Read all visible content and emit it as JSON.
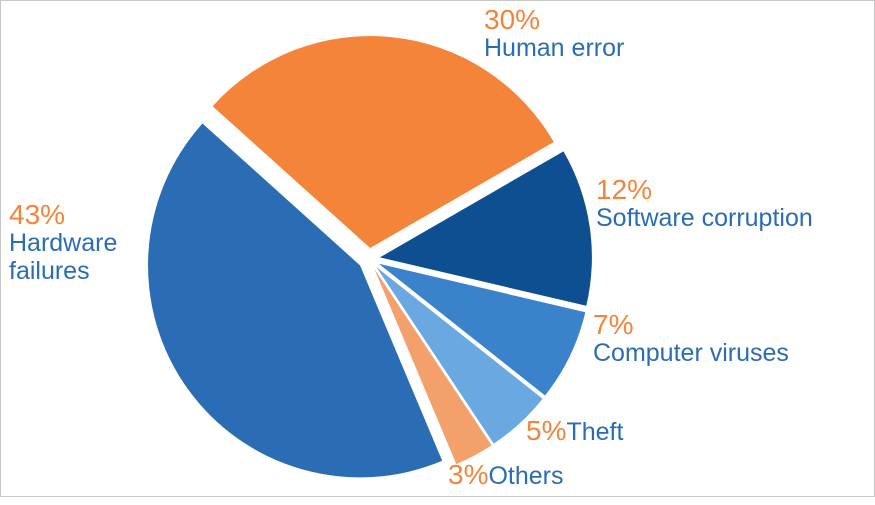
{
  "chart_data": {
    "type": "pie",
    "categories": [
      "Human error",
      "Software corruption",
      "Computer viruses",
      "Theft",
      "Others",
      "Hardware failures"
    ],
    "values": [
      30,
      12,
      7,
      5,
      3,
      43
    ],
    "value_labels": [
      "30%",
      "12%",
      "7%",
      "5%",
      "3%",
      "43%"
    ],
    "colors": [
      "#f5843b",
      "#0d4f91",
      "#3a82c9",
      "#6aa8e2",
      "#f4a06b",
      "#2a6db4"
    ]
  }
}
